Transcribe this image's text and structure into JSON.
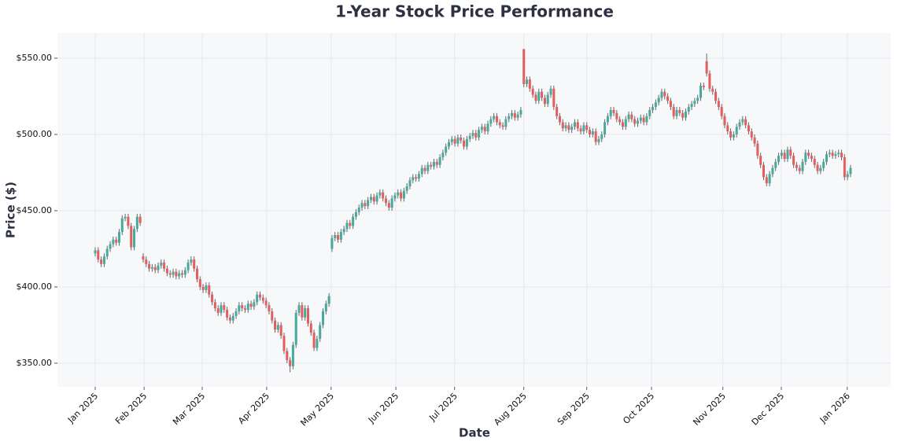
{
  "chart_data": {
    "type": "candlestick",
    "title": "1-Year Stock Price Performance",
    "x_label": "Date",
    "y_label": "Price ($)",
    "up_color": "#4aa99d",
    "down_color": "#e35f5f",
    "grid": true,
    "xlim": [
      -12.6,
      265.4
    ],
    "ylim": [
      334.5,
      566.5
    ],
    "xticks": [
      {
        "value": 0,
        "label": "Jan 2025"
      },
      {
        "value": 16.3,
        "label": "Feb 2025"
      },
      {
        "value": 35.7,
        "label": "Mar 2025"
      },
      {
        "value": 57.2,
        "label": "Apr 2025"
      },
      {
        "value": 78.7,
        "label": "May 2025"
      },
      {
        "value": 100.3,
        "label": "Jun 2025"
      },
      {
        "value": 119.9,
        "label": "Jul 2025"
      },
      {
        "value": 143.0,
        "label": "Aug 2025"
      },
      {
        "value": 164.0,
        "label": "Sep 2025"
      },
      {
        "value": 185.6,
        "label": "Oct 2025"
      },
      {
        "value": 209.4,
        "label": "Nov 2025"
      },
      {
        "value": 228.9,
        "label": "Dec 2025"
      },
      {
        "value": 250.9,
        "label": "Jan 2026"
      }
    ],
    "yticks": [
      {
        "value": 350,
        "label": "$350.00"
      },
      {
        "value": 400,
        "label": "$400.00"
      },
      {
        "value": 450,
        "label": "$450.00"
      },
      {
        "value": 500,
        "label": "$500.00"
      },
      {
        "value": 550,
        "label": "$550.00"
      }
    ],
    "open": [
      422,
      424,
      418,
      415,
      420,
      425,
      428,
      431,
      429,
      436,
      445,
      446,
      440,
      426,
      438,
      446,
      420,
      418,
      415,
      412,
      413,
      411,
      414,
      416,
      412,
      409,
      408,
      410,
      407,
      409,
      408,
      411,
      416,
      418,
      412,
      405,
      400,
      398,
      401,
      395,
      390,
      386,
      383,
      388,
      385,
      380,
      378,
      381,
      384,
      388,
      386,
      385,
      389,
      387,
      390,
      395,
      393,
      391,
      388,
      384,
      378,
      372,
      375,
      368,
      358,
      352,
      348,
      362,
      383,
      388,
      380,
      386,
      376,
      370,
      360,
      366,
      375,
      384,
      389,
      425,
      432,
      434,
      431,
      436,
      438,
      442,
      440,
      446,
      449,
      452,
      455,
      453,
      457,
      459,
      456,
      460,
      462,
      458,
      455,
      452,
      458,
      460,
      462,
      458,
      463,
      466,
      470,
      472,
      471,
      474,
      478,
      476,
      480,
      479,
      482,
      480,
      485,
      488,
      492,
      495,
      497,
      494,
      498,
      496,
      492,
      497,
      499,
      501,
      498,
      503,
      505,
      502,
      507,
      510,
      512,
      508,
      506,
      505,
      510,
      512,
      514,
      511,
      513,
      556,
      533,
      536,
      530,
      526,
      522,
      528,
      524,
      520,
      526,
      530,
      518,
      512,
      508,
      504,
      506,
      503,
      505,
      508,
      504,
      502,
      506,
      503,
      500,
      502,
      495,
      497,
      500,
      508,
      512,
      516,
      514,
      510,
      508,
      505,
      510,
      513,
      510,
      507,
      509,
      511,
      508,
      512,
      516,
      518,
      521,
      524,
      528,
      525,
      522,
      518,
      512,
      516,
      514,
      511,
      515,
      518,
      520,
      522,
      524,
      532,
      548,
      540,
      530,
      528,
      522,
      518,
      512,
      506,
      502,
      498,
      500,
      505,
      508,
      510,
      506,
      502,
      498,
      494,
      486,
      480,
      472,
      468,
      474,
      478,
      482,
      486,
      488,
      484,
      490,
      486,
      480,
      478,
      476,
      482,
      488,
      486,
      484,
      480,
      476,
      478,
      482,
      487,
      488,
      486,
      487,
      488,
      485,
      472,
      474
    ],
    "high": [
      426,
      426,
      420,
      422,
      427,
      430,
      433,
      433,
      438,
      447,
      448,
      448,
      442,
      440,
      448,
      448,
      422,
      420,
      417,
      415,
      415,
      416,
      418,
      418,
      414,
      411,
      412,
      412,
      411,
      411,
      413,
      418,
      420,
      420,
      414,
      407,
      402,
      403,
      403,
      397,
      392,
      388,
      390,
      390,
      387,
      382,
      383,
      386,
      390,
      390,
      388,
      391,
      391,
      392,
      397,
      397,
      395,
      393,
      390,
      386,
      380,
      377,
      377,
      370,
      360,
      354,
      364,
      385,
      390,
      390,
      388,
      388,
      378,
      372,
      368,
      377,
      386,
      391,
      396,
      434,
      436,
      436,
      438,
      440,
      444,
      444,
      448,
      451,
      454,
      457,
      457,
      459,
      461,
      461,
      462,
      464,
      464,
      460,
      457,
      460,
      462,
      464,
      464,
      465,
      468,
      472,
      474,
      474,
      476,
      480,
      480,
      482,
      482,
      484,
      484,
      487,
      490,
      494,
      497,
      499,
      499,
      500,
      500,
      498,
      499,
      501,
      503,
      503,
      505,
      507,
      507,
      509,
      512,
      514,
      514,
      510,
      508,
      512,
      514,
      516,
      516,
      515,
      518,
      556,
      538,
      538,
      532,
      528,
      530,
      530,
      526,
      528,
      532,
      532,
      520,
      514,
      510,
      508,
      508,
      507,
      510,
      510,
      506,
      508,
      508,
      505,
      504,
      504,
      499,
      502,
      510,
      514,
      518,
      518,
      516,
      512,
      510,
      512,
      515,
      515,
      512,
      511,
      513,
      513,
      514,
      518,
      520,
      523,
      526,
      530,
      530,
      527,
      524,
      520,
      518,
      518,
      516,
      517,
      520,
      522,
      524,
      526,
      534,
      534,
      553,
      542,
      532,
      530,
      524,
      520,
      514,
      508,
      504,
      502,
      507,
      510,
      512,
      512,
      508,
      504,
      500,
      496,
      488,
      482,
      474,
      476,
      480,
      484,
      488,
      490,
      490,
      492,
      492,
      488,
      482,
      480,
      484,
      490,
      490,
      488,
      486,
      482,
      480,
      484,
      489,
      490,
      490,
      489,
      490,
      490,
      487,
      476,
      480
    ],
    "low": [
      420,
      416,
      413,
      413,
      418,
      423,
      426,
      427,
      427,
      434,
      443,
      438,
      424,
      424,
      436,
      440,
      416,
      413,
      410,
      410,
      409,
      409,
      412,
      410,
      407,
      406,
      406,
      405,
      405,
      406,
      406,
      409,
      414,
      410,
      403,
      398,
      396,
      396,
      393,
      388,
      384,
      381,
      381,
      383,
      378,
      376,
      376,
      379,
      382,
      384,
      383,
      383,
      385,
      385,
      388,
      391,
      389,
      386,
      382,
      376,
      370,
      370,
      366,
      356,
      350,
      344,
      346,
      360,
      381,
      378,
      378,
      374,
      368,
      358,
      358,
      364,
      373,
      382,
      387,
      423,
      430,
      429,
      429,
      434,
      436,
      438,
      438,
      444,
      447,
      450,
      451,
      451,
      455,
      454,
      454,
      458,
      456,
      453,
      450,
      450,
      456,
      458,
      456,
      456,
      461,
      464,
      468,
      469,
      469,
      472,
      474,
      474,
      477,
      477,
      478,
      478,
      483,
      486,
      490,
      493,
      492,
      492,
      494,
      490,
      490,
      495,
      497,
      496,
      496,
      501,
      500,
      500,
      505,
      508,
      506,
      504,
      503,
      503,
      508,
      510,
      509,
      509,
      511,
      531,
      531,
      528,
      524,
      520,
      520,
      522,
      518,
      518,
      524,
      516,
      510,
      506,
      502,
      502,
      501,
      501,
      503,
      502,
      500,
      500,
      501,
      498,
      498,
      493,
      493,
      495,
      498,
      506,
      510,
      512,
      508,
      506,
      503,
      503,
      508,
      508,
      505,
      505,
      507,
      506,
      506,
      510,
      514,
      516,
      519,
      522,
      523,
      520,
      516,
      510,
      510,
      512,
      509,
      509,
      513,
      516,
      518,
      520,
      522,
      529,
      538,
      528,
      526,
      520,
      516,
      510,
      504,
      500,
      496,
      496,
      498,
      503,
      506,
      504,
      500,
      496,
      492,
      484,
      478,
      470,
      466,
      466,
      472,
      476,
      480,
      484,
      482,
      482,
      484,
      478,
      476,
      474,
      474,
      480,
      484,
      482,
      478,
      474,
      474,
      476,
      480,
      485,
      484,
      484,
      485,
      483,
      470,
      470,
      472
    ],
    "close": [
      424,
      418,
      415,
      420,
      425,
      428,
      431,
      429,
      436,
      445,
      446,
      440,
      426,
      438,
      446,
      442,
      418,
      415,
      412,
      413,
      411,
      414,
      416,
      412,
      409,
      408,
      410,
      407,
      409,
      408,
      411,
      416,
      418,
      412,
      405,
      400,
      398,
      401,
      395,
      390,
      386,
      383,
      388,
      385,
      380,
      378,
      381,
      384,
      388,
      386,
      385,
      389,
      387,
      390,
      395,
      393,
      391,
      388,
      384,
      378,
      372,
      375,
      368,
      358,
      352,
      348,
      362,
      383,
      388,
      380,
      386,
      376,
      370,
      360,
      366,
      375,
      384,
      389,
      394,
      432,
      434,
      431,
      436,
      438,
      442,
      440,
      446,
      449,
      452,
      455,
      453,
      457,
      459,
      456,
      460,
      462,
      458,
      455,
      452,
      458,
      460,
      462,
      458,
      463,
      466,
      470,
      472,
      471,
      474,
      478,
      476,
      480,
      479,
      482,
      480,
      485,
      488,
      492,
      495,
      497,
      494,
      498,
      496,
      492,
      497,
      499,
      501,
      498,
      503,
      505,
      502,
      507,
      510,
      512,
      508,
      506,
      505,
      510,
      512,
      514,
      511,
      513,
      516,
      533,
      536,
      530,
      526,
      522,
      528,
      524,
      520,
      526,
      530,
      518,
      512,
      508,
      504,
      506,
      503,
      505,
      508,
      504,
      502,
      506,
      503,
      500,
      502,
      495,
      497,
      500,
      508,
      512,
      516,
      514,
      510,
      508,
      505,
      510,
      513,
      510,
      507,
      509,
      511,
      508,
      512,
      516,
      518,
      521,
      524,
      528,
      525,
      522,
      518,
      512,
      516,
      514,
      511,
      515,
      518,
      520,
      522,
      524,
      532,
      531,
      540,
      530,
      528,
      522,
      518,
      512,
      506,
      502,
      498,
      500,
      505,
      508,
      510,
      506,
      502,
      498,
      494,
      486,
      480,
      472,
      468,
      474,
      478,
      482,
      486,
      488,
      484,
      490,
      486,
      480,
      478,
      476,
      482,
      488,
      486,
      484,
      480,
      476,
      478,
      482,
      487,
      488,
      486,
      487,
      488,
      485,
      472,
      474,
      478
    ]
  }
}
